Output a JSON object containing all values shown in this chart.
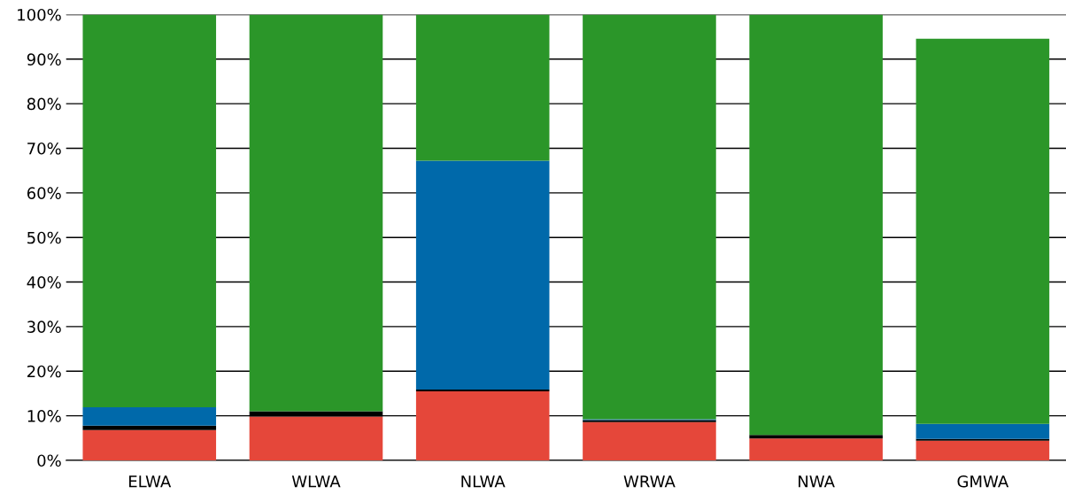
{
  "chart_data": {
    "type": "bar",
    "stacked": true,
    "categories": [
      "ELWA",
      "WLWA",
      "NLWA",
      "WRWA",
      "NWA",
      "GMWA"
    ],
    "series": [
      {
        "color": "#e5473a",
        "values": [
          6.8,
          9.8,
          15.5,
          8.6,
          4.9,
          4.4
        ]
      },
      {
        "color": "#000000",
        "values": [
          1.0,
          1.2,
          0.4,
          0.4,
          0.8,
          0.4
        ]
      },
      {
        "color": "#0069aa",
        "values": [
          4.1,
          0,
          51.3,
          0.2,
          0,
          3.4
        ]
      },
      {
        "color": "#2b9629",
        "values": [
          88.1,
          89.0,
          32.8,
          90.8,
          94.3,
          86.4
        ]
      }
    ],
    "ylim": [
      0,
      100
    ],
    "yticks": [
      {
        "value": 0,
        "label": "0%"
      },
      {
        "value": 10,
        "label": "10%"
      },
      {
        "value": 20,
        "label": "20%"
      },
      {
        "value": 30,
        "label": "30%"
      },
      {
        "value": 40,
        "label": "40%"
      },
      {
        "value": 50,
        "label": "50%"
      },
      {
        "value": 60,
        "label": "60%"
      },
      {
        "value": 70,
        "label": "70%"
      },
      {
        "value": 80,
        "label": "80%"
      },
      {
        "value": 90,
        "label": "90%"
      },
      {
        "value": 100,
        "label": "100%"
      }
    ],
    "grid": "y",
    "legend": false
  }
}
